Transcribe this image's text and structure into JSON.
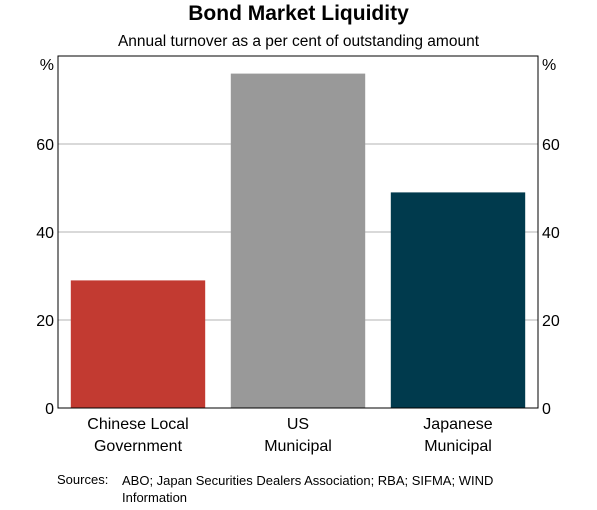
{
  "chart_data": {
    "type": "bar",
    "title": "Bond Market Liquidity",
    "subtitle": "Annual turnover as a per cent of outstanding amount",
    "categories": [
      [
        "Chinese Local",
        "Government"
      ],
      [
        "US",
        "Municipal"
      ],
      [
        "Japanese",
        "Municipal"
      ]
    ],
    "values": [
      29,
      76,
      49
    ],
    "colors": [
      "#c23a31",
      "#999999",
      "#003a4d"
    ],
    "ylim": [
      0,
      80
    ],
    "yticks": [
      0,
      20,
      40,
      60
    ],
    "unit_left": "%",
    "unit_right": "%",
    "grid": true
  },
  "source": {
    "label": "Sources:",
    "text": "ABO; Japan Securities Dealers Association; RBA; SIFMA; WIND Information"
  }
}
